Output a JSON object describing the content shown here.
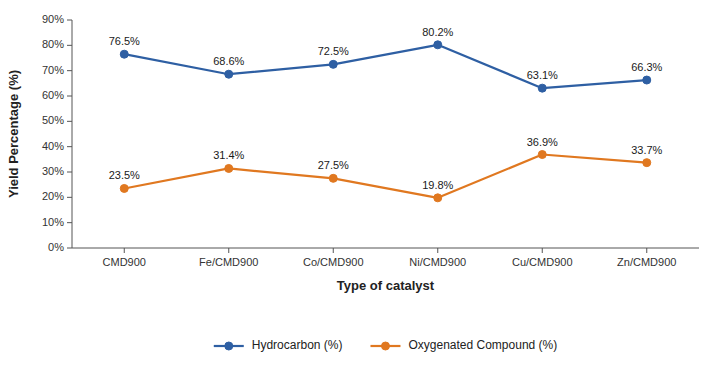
{
  "chart_data": {
    "type": "line",
    "categories": [
      "CMD900",
      "Fe/CMD900",
      "Co/CMD900",
      "Ni/CMD900",
      "Cu/CMD900",
      "Zn/CMD900"
    ],
    "series": [
      {
        "name": "Hydrocarbon (%)",
        "color": "#2e5fa3",
        "values": [
          76.5,
          68.6,
          72.5,
          80.2,
          63.1,
          66.3
        ],
        "value_labels": [
          "76.5%",
          "68.6%",
          "72.5%",
          "80.2%",
          "63.1%",
          "66.3%"
        ]
      },
      {
        "name": "Oxygenated Compound (%)",
        "color": "#e07820",
        "values": [
          23.5,
          31.4,
          27.5,
          19.8,
          36.9,
          33.7
        ],
        "value_labels": [
          "23.5%",
          "31.4%",
          "27.5%",
          "19.8%",
          "36.9%",
          "33.7%"
        ]
      }
    ],
    "xlabel": "Type of catalyst",
    "ylabel": "Yield Percentage (%)",
    "ylim": [
      0,
      90
    ],
    "yticks": [
      {
        "value": 0,
        "label": "0%"
      },
      {
        "value": 10,
        "label": "10%"
      },
      {
        "value": 20,
        "label": "20%"
      },
      {
        "value": 30,
        "label": "30%"
      },
      {
        "value": 40,
        "label": "40%"
      },
      {
        "value": 50,
        "label": "50%"
      },
      {
        "value": 60,
        "label": "60%"
      },
      {
        "value": 70,
        "label": "70%"
      },
      {
        "value": 80,
        "label": "80%"
      },
      {
        "value": 90,
        "label": "90%"
      }
    ],
    "marker": "circle",
    "data_labels": true,
    "grid": false,
    "legend": "bottom"
  }
}
